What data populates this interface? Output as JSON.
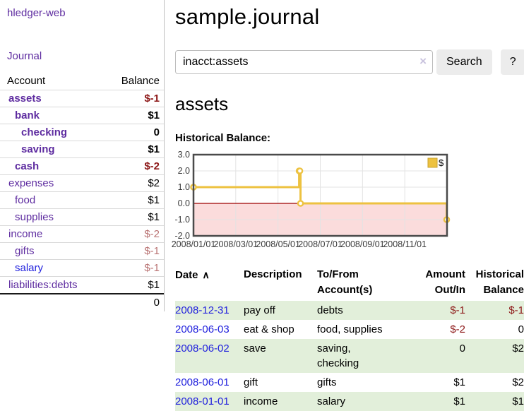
{
  "sidebar": {
    "brand": "hledger-web",
    "nav": {
      "journal_label": "Journal"
    },
    "accounts_table": {
      "headers": {
        "account": "Account",
        "balance": "Balance"
      },
      "rows": [
        {
          "name": "assets",
          "depth": 1,
          "bold": true,
          "link": "purple",
          "balance": "$-1",
          "value_class": "v-negstrong"
        },
        {
          "name": "bank",
          "depth": 2,
          "bold": true,
          "link": "purple",
          "balance": "$1",
          "value_class": "v-posstrong"
        },
        {
          "name": "checking",
          "depth": 3,
          "bold": true,
          "link": "purple",
          "balance": "0",
          "value_class": "v-posstrong"
        },
        {
          "name": "saving",
          "depth": 3,
          "bold": true,
          "link": "purple",
          "balance": "$1",
          "value_class": "v-posstrong"
        },
        {
          "name": "cash",
          "depth": 2,
          "bold": true,
          "link": "purple",
          "balance": "$-2",
          "value_class": "v-negstrong"
        },
        {
          "name": "expenses",
          "depth": 1,
          "bold": false,
          "link": "purple",
          "balance": "$2",
          "value_class": ""
        },
        {
          "name": "food",
          "depth": 2,
          "bold": false,
          "link": "purple",
          "balance": "$1",
          "value_class": ""
        },
        {
          "name": "supplies",
          "depth": 2,
          "bold": false,
          "link": "purple",
          "balance": "$1",
          "value_class": ""
        },
        {
          "name": "income",
          "depth": 1,
          "bold": false,
          "link": "purple",
          "balance": "$-2",
          "value_class": "v-negmuted"
        },
        {
          "name": "gifts",
          "depth": 2,
          "bold": false,
          "link": "purple",
          "balance": "$-1",
          "value_class": "v-negmuted"
        },
        {
          "name": "salary",
          "depth": 2,
          "bold": false,
          "link": "blue",
          "balance": "$-1",
          "value_class": "v-negmuted"
        },
        {
          "name": "liabilities:debts",
          "depth": 1,
          "bold": false,
          "link": "purple",
          "balance": "$1",
          "value_class": ""
        }
      ],
      "total": "0"
    }
  },
  "header": {
    "title": "sample.journal"
  },
  "search": {
    "value": "inacct:assets",
    "clear_icon": "×",
    "button_label": "Search",
    "help_label": "?"
  },
  "account_page": {
    "heading": "assets",
    "chart_title": "Historical Balance:"
  },
  "chart_data": {
    "type": "line",
    "title": "Historical Balance:",
    "step": true,
    "series": [
      {
        "name": "$",
        "color": "#edc240",
        "points": [
          [
            "2008-01-01",
            1
          ],
          [
            "2008-06-01",
            2
          ],
          [
            "2008-06-02",
            2
          ],
          [
            "2008-06-03",
            0
          ],
          [
            "2008-12-31",
            -1
          ]
        ]
      }
    ],
    "ylim": [
      -2,
      3
    ],
    "yticks": [
      "3.0",
      "2.0",
      "1.0",
      "0.0",
      "-1.0",
      "-2.0"
    ],
    "ytick_values": [
      3,
      2,
      1,
      0,
      -1,
      -2
    ],
    "xlim": [
      "2008-01-01",
      "2009-01-01"
    ],
    "xticks": [
      "2008/01/01",
      "2008/03/01",
      "2008/05/01",
      "2008/07/01",
      "2008/09/01",
      "2008/11/01"
    ],
    "legend": "$",
    "legend_position": "top-right",
    "grid": true,
    "negative_region_color": "#fbdcdc",
    "zero_line_color": "#9d0000"
  },
  "register_table": {
    "headers": {
      "date": "Date",
      "sort_icon": "∧",
      "description": "Description",
      "accounts_line1": "To/From",
      "accounts_line2": "Account(s)",
      "amount_line1": "Amount",
      "amount_line2": "Out/In",
      "balance_line1": "Historical",
      "balance_line2": "Balance"
    },
    "rows": [
      {
        "date": "2008-12-31",
        "description": "pay off",
        "accounts": "debts",
        "amount": "$-1",
        "amount_neg": true,
        "balance": "$-1",
        "balance_neg": true
      },
      {
        "date": "2008-06-03",
        "description": "eat & shop",
        "accounts": "food, supplies",
        "amount": "$-2",
        "amount_neg": true,
        "balance": "0",
        "balance_neg": false
      },
      {
        "date": "2008-06-02",
        "description": "save",
        "accounts": "saving, checking",
        "amount": "0",
        "amount_neg": false,
        "balance": "$2",
        "balance_neg": false
      },
      {
        "date": "2008-06-01",
        "description": "gift",
        "accounts": "gifts",
        "amount": "$1",
        "amount_neg": false,
        "balance": "$2",
        "balance_neg": false
      },
      {
        "date": "2008-01-01",
        "description": "income",
        "accounts": "salary",
        "amount": "$1",
        "amount_neg": false,
        "balance": "$1",
        "balance_neg": false
      }
    ]
  },
  "colors": {
    "link_purple": "#5e2ca0",
    "link_blue": "#2121dd",
    "negative_strong": "#8c1616",
    "negative_muted": "#b97373",
    "row_green": "#e2efda",
    "chart_gold": "#edc240",
    "chart_border": "#4a4a4a",
    "grid_line": "#e3e3e3",
    "axis_text": "#3a3a3a"
  }
}
